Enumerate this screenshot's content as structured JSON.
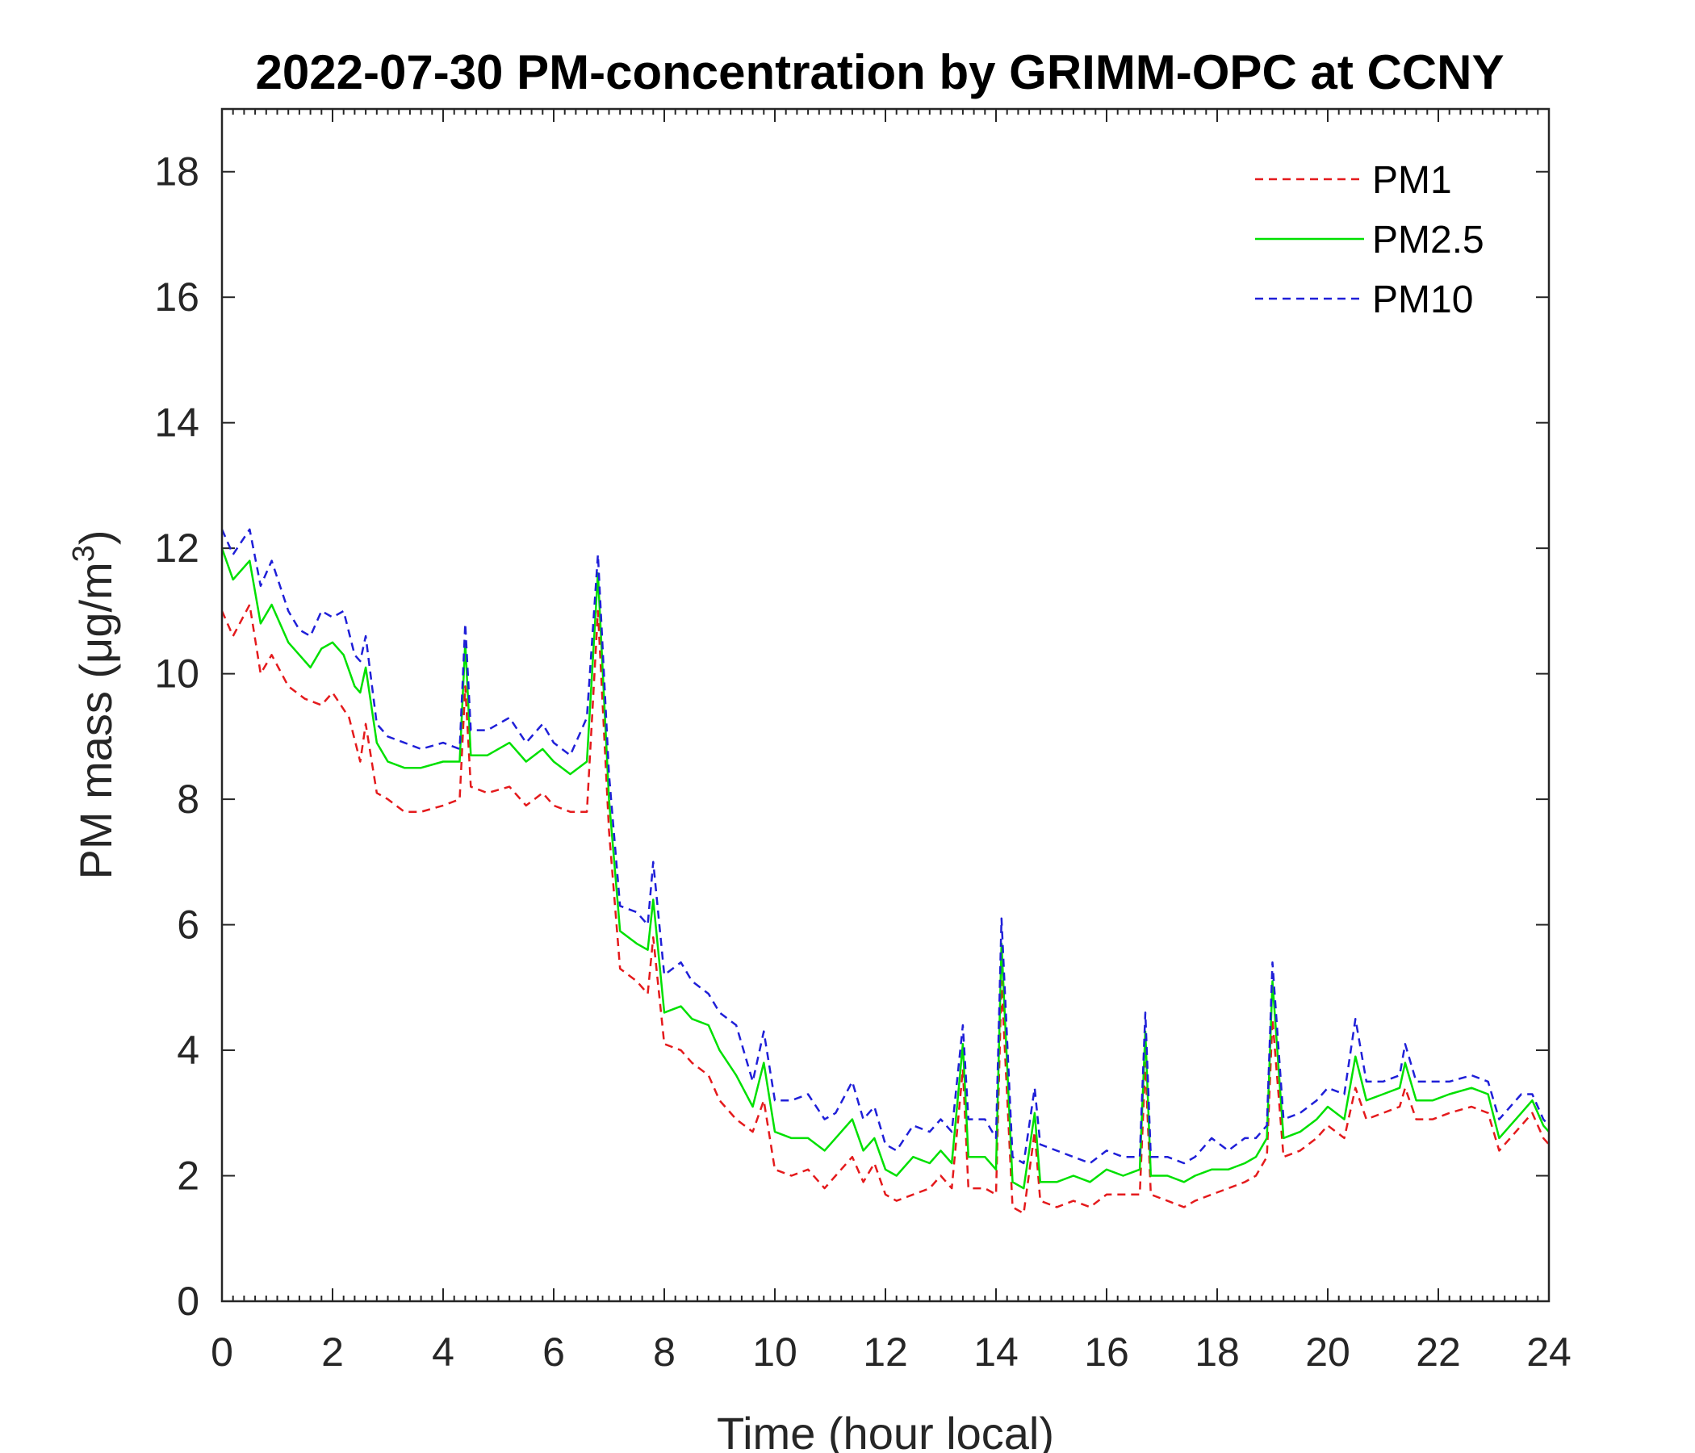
{
  "chart_data": {
    "type": "line",
    "title": "2022-07-30 PM-concentration by GRIMM-OPC at CCNY",
    "xlabel": "Time (hour local)",
    "ylabel_prefix": "PM mass (",
    "ylabel_unit": "μg/m",
    "ylabel_sup": "3",
    "ylabel_suffix": ")",
    "xlim": [
      0,
      24
    ],
    "ylim": [
      0,
      19
    ],
    "xticks": [
      0,
      2,
      4,
      6,
      8,
      10,
      12,
      14,
      16,
      18,
      20,
      22,
      24
    ],
    "xtick_labels": [
      "0",
      "2",
      "4",
      "6",
      "8",
      "10",
      "12",
      "14",
      "16",
      "18",
      "20",
      "22",
      "24"
    ],
    "yticks": [
      0,
      2,
      4,
      6,
      8,
      10,
      12,
      14,
      16,
      18
    ],
    "ytick_labels": [
      "0",
      "2",
      "4",
      "6",
      "8",
      "10",
      "12",
      "14",
      "16",
      "18"
    ],
    "legend_position": "top-right",
    "series": [
      {
        "name": "PM1",
        "color": "#e41a1c",
        "style": "dashed",
        "points": [
          [
            0,
            11.0
          ],
          [
            0.2,
            10.6
          ],
          [
            0.5,
            11.1
          ],
          [
            0.7,
            10.0
          ],
          [
            0.9,
            10.3
          ],
          [
            1.2,
            9.8
          ],
          [
            1.5,
            9.6
          ],
          [
            1.8,
            9.5
          ],
          [
            2.0,
            9.7
          ],
          [
            2.3,
            9.3
          ],
          [
            2.5,
            8.6
          ],
          [
            2.6,
            9.2
          ],
          [
            2.8,
            8.1
          ],
          [
            3.0,
            8.0
          ],
          [
            3.3,
            7.8
          ],
          [
            3.6,
            7.8
          ],
          [
            4.0,
            7.9
          ],
          [
            4.3,
            8.0
          ],
          [
            4.4,
            9.8
          ],
          [
            4.5,
            8.2
          ],
          [
            4.8,
            8.1
          ],
          [
            5.2,
            8.2
          ],
          [
            5.5,
            7.9
          ],
          [
            5.8,
            8.1
          ],
          [
            6.0,
            7.9
          ],
          [
            6.3,
            7.8
          ],
          [
            6.6,
            7.8
          ],
          [
            6.8,
            11.0
          ],
          [
            7.0,
            7.5
          ],
          [
            7.2,
            5.3
          ],
          [
            7.5,
            5.1
          ],
          [
            7.7,
            4.9
          ],
          [
            7.8,
            5.8
          ],
          [
            8.0,
            4.1
          ],
          [
            8.3,
            4.0
          ],
          [
            8.5,
            3.8
          ],
          [
            8.8,
            3.6
          ],
          [
            9.0,
            3.2
          ],
          [
            9.3,
            2.9
          ],
          [
            9.6,
            2.7
          ],
          [
            9.8,
            3.2
          ],
          [
            10.0,
            2.1
          ],
          [
            10.3,
            2.0
          ],
          [
            10.6,
            2.1
          ],
          [
            10.9,
            1.8
          ],
          [
            11.1,
            2.0
          ],
          [
            11.4,
            2.3
          ],
          [
            11.6,
            1.9
          ],
          [
            11.8,
            2.2
          ],
          [
            12.0,
            1.7
          ],
          [
            12.2,
            1.6
          ],
          [
            12.5,
            1.7
          ],
          [
            12.8,
            1.8
          ],
          [
            13.0,
            2.0
          ],
          [
            13.2,
            1.8
          ],
          [
            13.4,
            3.7
          ],
          [
            13.5,
            1.8
          ],
          [
            13.8,
            1.8
          ],
          [
            14.0,
            1.7
          ],
          [
            14.1,
            5.1
          ],
          [
            14.3,
            1.5
          ],
          [
            14.5,
            1.4
          ],
          [
            14.7,
            2.7
          ],
          [
            14.8,
            1.6
          ],
          [
            15.1,
            1.5
          ],
          [
            15.4,
            1.6
          ],
          [
            15.7,
            1.5
          ],
          [
            16.0,
            1.7
          ],
          [
            16.3,
            1.7
          ],
          [
            16.6,
            1.7
          ],
          [
            16.7,
            3.8
          ],
          [
            16.8,
            1.7
          ],
          [
            17.1,
            1.6
          ],
          [
            17.4,
            1.5
          ],
          [
            17.6,
            1.6
          ],
          [
            17.9,
            1.7
          ],
          [
            18.2,
            1.8
          ],
          [
            18.5,
            1.9
          ],
          [
            18.7,
            2.0
          ],
          [
            18.9,
            2.3
          ],
          [
            19.0,
            4.5
          ],
          [
            19.2,
            2.3
          ],
          [
            19.5,
            2.4
          ],
          [
            19.8,
            2.6
          ],
          [
            20.0,
            2.8
          ],
          [
            20.3,
            2.6
          ],
          [
            20.5,
            3.4
          ],
          [
            20.7,
            2.9
          ],
          [
            21.0,
            3.0
          ],
          [
            21.3,
            3.1
          ],
          [
            21.4,
            3.4
          ],
          [
            21.6,
            2.9
          ],
          [
            21.9,
            2.9
          ],
          [
            22.2,
            3.0
          ],
          [
            22.6,
            3.1
          ],
          [
            22.9,
            3.0
          ],
          [
            23.1,
            2.4
          ],
          [
            23.5,
            2.8
          ],
          [
            23.7,
            3.0
          ],
          [
            23.9,
            2.6
          ],
          [
            24.0,
            2.5
          ]
        ]
      },
      {
        "name": "PM2.5",
        "color": "#00e000",
        "style": "solid",
        "points": [
          [
            0,
            12.0
          ],
          [
            0.2,
            11.5
          ],
          [
            0.5,
            11.8
          ],
          [
            0.7,
            10.8
          ],
          [
            0.9,
            11.1
          ],
          [
            1.2,
            10.5
          ],
          [
            1.4,
            10.3
          ],
          [
            1.6,
            10.1
          ],
          [
            1.8,
            10.4
          ],
          [
            2.0,
            10.5
          ],
          [
            2.2,
            10.3
          ],
          [
            2.4,
            9.8
          ],
          [
            2.5,
            9.7
          ],
          [
            2.6,
            10.1
          ],
          [
            2.8,
            8.9
          ],
          [
            3.0,
            8.6
          ],
          [
            3.3,
            8.5
          ],
          [
            3.6,
            8.5
          ],
          [
            4.0,
            8.6
          ],
          [
            4.3,
            8.6
          ],
          [
            4.4,
            10.5
          ],
          [
            4.5,
            8.7
          ],
          [
            4.8,
            8.7
          ],
          [
            5.2,
            8.9
          ],
          [
            5.5,
            8.6
          ],
          [
            5.8,
            8.8
          ],
          [
            6.0,
            8.6
          ],
          [
            6.3,
            8.4
          ],
          [
            6.6,
            8.6
          ],
          [
            6.8,
            11.6
          ],
          [
            7.0,
            8.0
          ],
          [
            7.2,
            5.9
          ],
          [
            7.5,
            5.7
          ],
          [
            7.7,
            5.6
          ],
          [
            7.8,
            6.4
          ],
          [
            8.0,
            4.6
          ],
          [
            8.3,
            4.7
          ],
          [
            8.5,
            4.5
          ],
          [
            8.8,
            4.4
          ],
          [
            9.0,
            4.0
          ],
          [
            9.3,
            3.6
          ],
          [
            9.6,
            3.1
          ],
          [
            9.8,
            3.8
          ],
          [
            10.0,
            2.7
          ],
          [
            10.3,
            2.6
          ],
          [
            10.6,
            2.6
          ],
          [
            10.9,
            2.4
          ],
          [
            11.1,
            2.6
          ],
          [
            11.4,
            2.9
          ],
          [
            11.6,
            2.4
          ],
          [
            11.8,
            2.6
          ],
          [
            12.0,
            2.1
          ],
          [
            12.2,
            2.0
          ],
          [
            12.5,
            2.3
          ],
          [
            12.8,
            2.2
          ],
          [
            13.0,
            2.4
          ],
          [
            13.2,
            2.2
          ],
          [
            13.4,
            4.1
          ],
          [
            13.5,
            2.3
          ],
          [
            13.8,
            2.3
          ],
          [
            14.0,
            2.1
          ],
          [
            14.1,
            5.7
          ],
          [
            14.3,
            1.9
          ],
          [
            14.5,
            1.8
          ],
          [
            14.7,
            3.0
          ],
          [
            14.8,
            1.9
          ],
          [
            15.1,
            1.9
          ],
          [
            15.4,
            2.0
          ],
          [
            15.7,
            1.9
          ],
          [
            16.0,
            2.1
          ],
          [
            16.3,
            2.0
          ],
          [
            16.6,
            2.1
          ],
          [
            16.7,
            4.3
          ],
          [
            16.8,
            2.0
          ],
          [
            17.1,
            2.0
          ],
          [
            17.4,
            1.9
          ],
          [
            17.6,
            2.0
          ],
          [
            17.9,
            2.1
          ],
          [
            18.2,
            2.1
          ],
          [
            18.5,
            2.2
          ],
          [
            18.7,
            2.3
          ],
          [
            18.9,
            2.6
          ],
          [
            19.0,
            5.1
          ],
          [
            19.2,
            2.6
          ],
          [
            19.5,
            2.7
          ],
          [
            19.8,
            2.9
          ],
          [
            20.0,
            3.1
          ],
          [
            20.3,
            2.9
          ],
          [
            20.5,
            3.9
          ],
          [
            20.7,
            3.2
          ],
          [
            21.0,
            3.3
          ],
          [
            21.3,
            3.4
          ],
          [
            21.4,
            3.8
          ],
          [
            21.6,
            3.2
          ],
          [
            21.9,
            3.2
          ],
          [
            22.2,
            3.3
          ],
          [
            22.6,
            3.4
          ],
          [
            22.9,
            3.3
          ],
          [
            23.1,
            2.6
          ],
          [
            23.5,
            3.0
          ],
          [
            23.7,
            3.2
          ],
          [
            23.9,
            2.8
          ],
          [
            24.0,
            2.7
          ]
        ]
      },
      {
        "name": "PM10",
        "color": "#1f1fd8",
        "style": "dashed",
        "points": [
          [
            0,
            12.3
          ],
          [
            0.2,
            11.9
          ],
          [
            0.5,
            12.3
          ],
          [
            0.7,
            11.4
          ],
          [
            0.9,
            11.8
          ],
          [
            1.2,
            11.0
          ],
          [
            1.4,
            10.7
          ],
          [
            1.6,
            10.6
          ],
          [
            1.8,
            11.0
          ],
          [
            2.0,
            10.9
          ],
          [
            2.2,
            11.0
          ],
          [
            2.4,
            10.3
          ],
          [
            2.5,
            10.2
          ],
          [
            2.6,
            10.6
          ],
          [
            2.8,
            9.2
          ],
          [
            3.0,
            9.0
          ],
          [
            3.3,
            8.9
          ],
          [
            3.6,
            8.8
          ],
          [
            4.0,
            8.9
          ],
          [
            4.3,
            8.8
          ],
          [
            4.4,
            10.8
          ],
          [
            4.5,
            9.1
          ],
          [
            4.8,
            9.1
          ],
          [
            5.2,
            9.3
          ],
          [
            5.5,
            8.9
          ],
          [
            5.8,
            9.2
          ],
          [
            6.0,
            8.9
          ],
          [
            6.3,
            8.7
          ],
          [
            6.6,
            9.3
          ],
          [
            6.8,
            11.9
          ],
          [
            7.0,
            8.4
          ],
          [
            7.2,
            6.3
          ],
          [
            7.5,
            6.2
          ],
          [
            7.7,
            6.0
          ],
          [
            7.8,
            7.0
          ],
          [
            8.0,
            5.2
          ],
          [
            8.3,
            5.4
          ],
          [
            8.5,
            5.1
          ],
          [
            8.8,
            4.9
          ],
          [
            9.0,
            4.6
          ],
          [
            9.3,
            4.4
          ],
          [
            9.6,
            3.5
          ],
          [
            9.8,
            4.3
          ],
          [
            10.0,
            3.2
          ],
          [
            10.3,
            3.2
          ],
          [
            10.6,
            3.3
          ],
          [
            10.9,
            2.9
          ],
          [
            11.1,
            3.0
          ],
          [
            11.4,
            3.5
          ],
          [
            11.6,
            2.9
          ],
          [
            11.8,
            3.1
          ],
          [
            12.0,
            2.5
          ],
          [
            12.2,
            2.4
          ],
          [
            12.5,
            2.8
          ],
          [
            12.8,
            2.7
          ],
          [
            13.0,
            2.9
          ],
          [
            13.2,
            2.7
          ],
          [
            13.4,
            4.4
          ],
          [
            13.5,
            2.9
          ],
          [
            13.8,
            2.9
          ],
          [
            14.0,
            2.6
          ],
          [
            14.1,
            6.1
          ],
          [
            14.3,
            2.3
          ],
          [
            14.5,
            2.2
          ],
          [
            14.7,
            3.4
          ],
          [
            14.8,
            2.5
          ],
          [
            15.1,
            2.4
          ],
          [
            15.4,
            2.3
          ],
          [
            15.7,
            2.2
          ],
          [
            16.0,
            2.4
          ],
          [
            16.3,
            2.3
          ],
          [
            16.6,
            2.3
          ],
          [
            16.7,
            4.6
          ],
          [
            16.8,
            2.3
          ],
          [
            17.1,
            2.3
          ],
          [
            17.4,
            2.2
          ],
          [
            17.6,
            2.3
          ],
          [
            17.9,
            2.6
          ],
          [
            18.2,
            2.4
          ],
          [
            18.5,
            2.6
          ],
          [
            18.7,
            2.6
          ],
          [
            18.9,
            2.8
          ],
          [
            19.0,
            5.4
          ],
          [
            19.2,
            2.9
          ],
          [
            19.5,
            3.0
          ],
          [
            19.8,
            3.2
          ],
          [
            20.0,
            3.4
          ],
          [
            20.3,
            3.3
          ],
          [
            20.5,
            4.5
          ],
          [
            20.7,
            3.5
          ],
          [
            21.0,
            3.5
          ],
          [
            21.3,
            3.6
          ],
          [
            21.4,
            4.1
          ],
          [
            21.6,
            3.5
          ],
          [
            21.9,
            3.5
          ],
          [
            22.2,
            3.5
          ],
          [
            22.6,
            3.6
          ],
          [
            22.9,
            3.5
          ],
          [
            23.1,
            2.9
          ],
          [
            23.5,
            3.3
          ],
          [
            23.7,
            3.3
          ],
          [
            23.9,
            2.9
          ],
          [
            24.0,
            2.8
          ]
        ]
      }
    ]
  }
}
